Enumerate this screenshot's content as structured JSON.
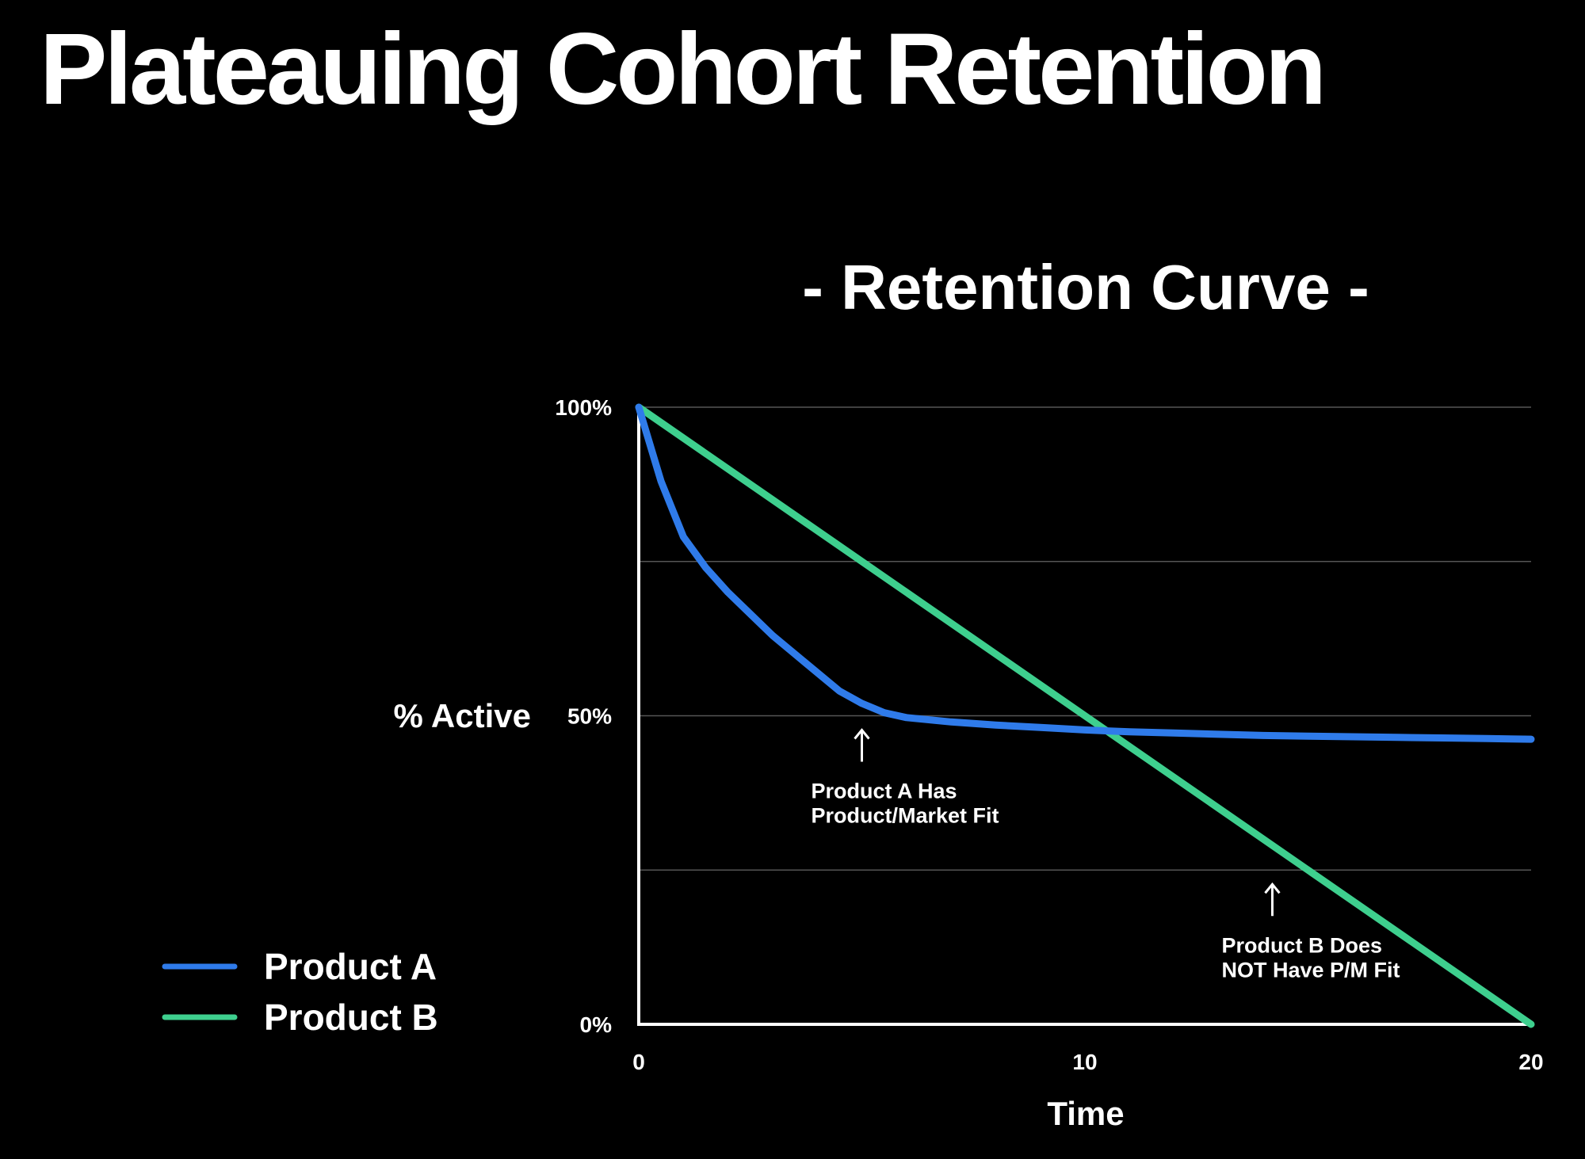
{
  "slide": {
    "title": "Plateauing Cohort Retention"
  },
  "chart_data": {
    "type": "line",
    "title": "- Retention Curve -",
    "xlabel": "Time",
    "ylabel": "% Active",
    "xlim": [
      0,
      20
    ],
    "ylim": [
      0,
      100
    ],
    "x_ticks": [
      {
        "value": 0,
        "label": "0"
      },
      {
        "value": 10,
        "label": "10"
      },
      {
        "value": 20,
        "label": "20"
      }
    ],
    "y_ticks": [
      {
        "value": 100,
        "label": "100%"
      },
      {
        "value": 50,
        "label": "50%"
      },
      {
        "value": 0,
        "label": "0%"
      }
    ],
    "gridlines_y": [
      100,
      75,
      50,
      25
    ],
    "grid": true,
    "legend_position": "bottom-left",
    "series": [
      {
        "name": "Product A",
        "color": "#2f7bea",
        "x": [
          0,
          0.5,
          1,
          1.5,
          2,
          2.5,
          3,
          3.5,
          4,
          4.5,
          5,
          5.5,
          6,
          7,
          8,
          9,
          10,
          11,
          12,
          13,
          14,
          15,
          16,
          17,
          18,
          19,
          20
        ],
        "y": [
          100,
          88,
          79,
          74,
          70,
          66.5,
          63,
          60,
          57,
          54,
          52,
          50.5,
          49.7,
          49,
          48.5,
          48.1,
          47.7,
          47.4,
          47.2,
          47,
          46.8,
          46.7,
          46.6,
          46.5,
          46.4,
          46.3,
          46.2
        ]
      },
      {
        "name": "Product B",
        "color": "#3ecf8e",
        "x": [
          0,
          20
        ],
        "y": [
          100,
          0
        ]
      }
    ],
    "annotations": [
      {
        "series": "Product A",
        "x": 5,
        "y": 50,
        "lines": [
          "Product A Has",
          "Product/Market Fit"
        ]
      },
      {
        "series": "Product B",
        "x": 14.2,
        "y": 25,
        "lines": [
          "Product B Does",
          "NOT Have P/M Fit"
        ]
      }
    ]
  }
}
